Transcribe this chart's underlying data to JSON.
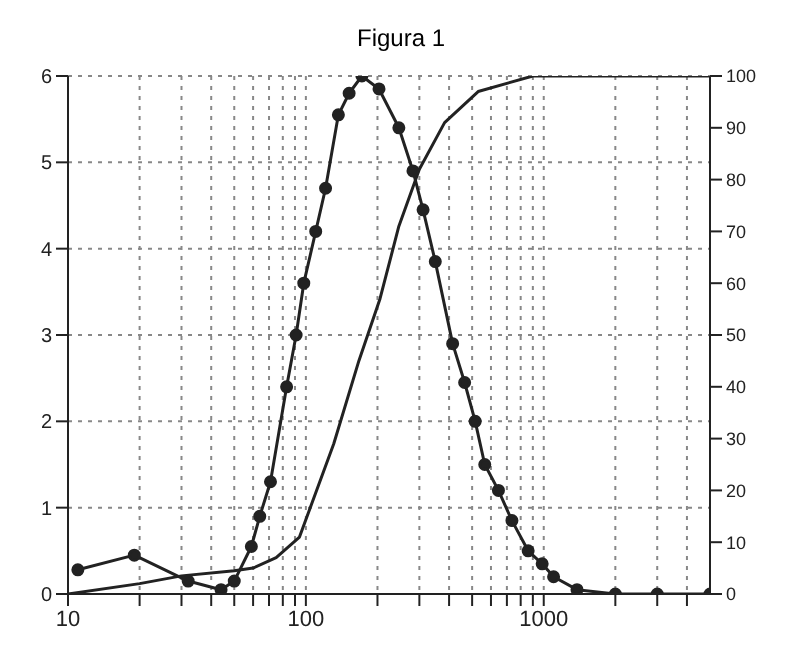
{
  "chart_data": {
    "type": "line",
    "title": "Figura 1",
    "log": "x",
    "grid": true,
    "line_style": "solid",
    "xlim": [
      10,
      5000
    ],
    "xticks": [
      10,
      {
        "value": 20,
        "label": null
      },
      {
        "value": 30,
        "label": null
      },
      {
        "value": 40,
        "label": null
      },
      {
        "value": 50,
        "label": null
      },
      {
        "value": 60,
        "label": null
      },
      {
        "value": 70,
        "label": null
      },
      {
        "value": 80,
        "label": null
      },
      {
        "value": 90,
        "label": null
      },
      100,
      {
        "value": 200,
        "label": null
      },
      {
        "value": 300,
        "label": null
      },
      {
        "value": 400,
        "label": null
      },
      {
        "value": 500,
        "label": null
      },
      {
        "value": 600,
        "label": null
      },
      {
        "value": 700,
        "label": null
      },
      {
        "value": 800,
        "label": null
      },
      {
        "value": 900,
        "label": null
      },
      1000,
      {
        "value": 2000,
        "label": null
      },
      {
        "value": 3000,
        "label": null
      },
      {
        "value": 4000,
        "label": null
      }
    ],
    "ylim": [
      0,
      6
    ],
    "yticks": [
      0,
      1,
      2,
      3,
      4,
      5,
      6
    ],
    "y2lim": [
      0,
      100
    ],
    "y2ticks": [
      0,
      10,
      20,
      30,
      40,
      50,
      60,
      70,
      80,
      90,
      100
    ],
    "series": [
      {
        "color": "#222222",
        "marker": "circle",
        "x": [
          11,
          19,
          32,
          44,
          50,
          59,
          64,
          71,
          83,
          91,
          98,
          110,
          121,
          137,
          152,
          172,
          203,
          246,
          282,
          311,
          350,
          414,
          465,
          515,
          565,
          645,
          735,
          860,
          985,
          1100,
          1380,
          2000,
          3000,
          5000
        ],
        "values": [
          0.28,
          0.45,
          0.15,
          0.05,
          0.15,
          0.55,
          0.9,
          1.3,
          2.4,
          3.0,
          3.6,
          4.2,
          4.7,
          5.55,
          5.8,
          6.0,
          5.85,
          5.4,
          4.9,
          4.45,
          3.85,
          2.9,
          2.45,
          2.0,
          1.5,
          1.2,
          0.85,
          0.5,
          0.35,
          0.2,
          0.05,
          0,
          0,
          0
        ]
      },
      {
        "color": "#222222",
        "marker": "none",
        "axis": "y2",
        "x": [
          10,
          20,
          30,
          50,
          60,
          75,
          94,
          131,
          167,
          205,
          246,
          300,
          383,
          530,
          900,
          5000
        ],
        "values": [
          0,
          2,
          3.5,
          4.5,
          5,
          7,
          11,
          29,
          45,
          57,
          71,
          82,
          91,
          97,
          100,
          100
        ]
      }
    ]
  }
}
